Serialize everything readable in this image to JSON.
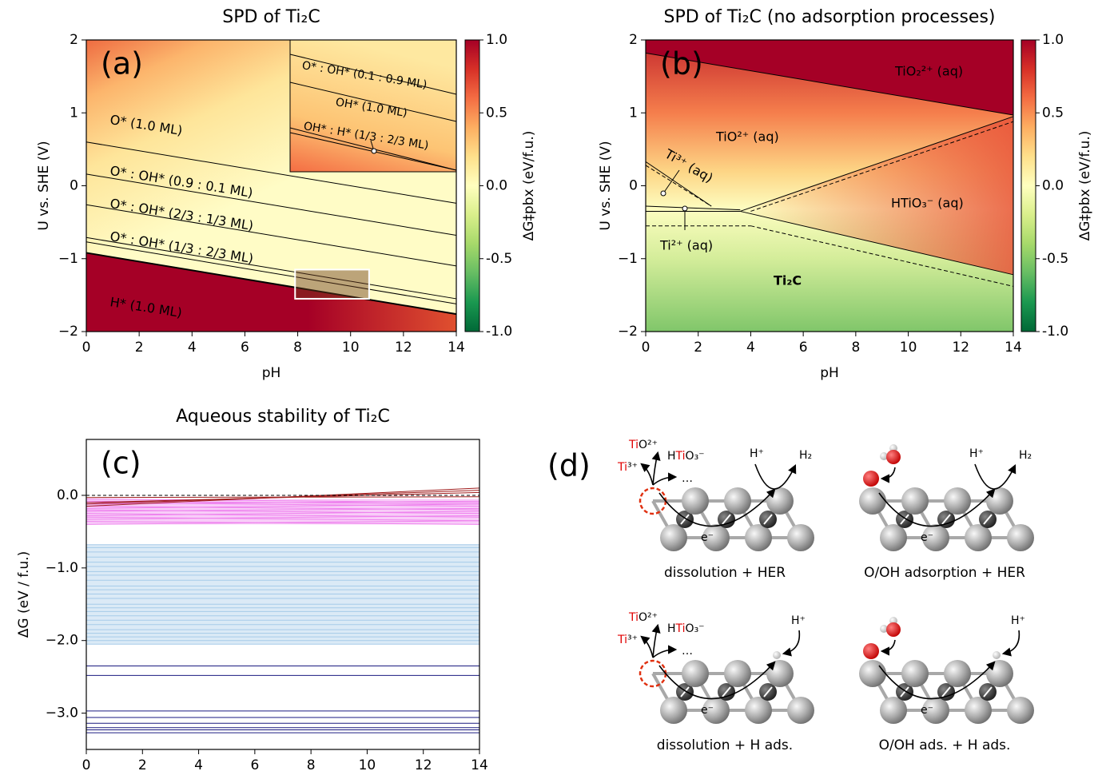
{
  "chart_data": [
    {
      "type": "pourbaix",
      "title": "SPD of Ti₂C",
      "panel_label": "(a)",
      "xlabel": "pH",
      "ylabel": "U vs. SHE (V)",
      "xlim": [
        0,
        14
      ],
      "ylim": [
        -2,
        2
      ],
      "xticks": [
        0,
        2,
        4,
        6,
        8,
        10,
        12,
        14
      ],
      "yticks": [
        {
          "value": -2,
          "label": "−2"
        },
        {
          "value": -1,
          "label": "−1"
        },
        0,
        1,
        2
      ],
      "x": [
        0,
        14
      ],
      "series": [
        {
          "color": "#000000",
          "values": [
            0.6,
            -0.24
          ]
        },
        {
          "color": "#000000",
          "values": [
            0.16,
            -0.68
          ]
        },
        {
          "color": "#000000",
          "values": [
            -0.26,
            -1.1
          ]
        },
        {
          "color": "#000000",
          "values": [
            -0.71,
            -1.55
          ]
        },
        {
          "color": "#000000",
          "values": [
            -0.77,
            -1.62
          ]
        },
        {
          "color": "#000000",
          "values": [
            -0.92,
            -1.76
          ],
          "linewidth": 2
        }
      ],
      "region_labels": [
        "O* (1.0 ML)",
        "O* : OH* (0.9 : 0.1 ML)",
        "O* : OH* (2/3 : 1/3 ML)",
        "O* : OH* (1/3 : 2/3 ML)",
        "H* (1.0 ML)"
      ],
      "inset_labels": [
        "O* : OH* (0.1 : 0.9 ML)",
        "OH* (1.0 ML)",
        "OH* : H* (1/3 : 2/3 ML)"
      ],
      "inset_region": {
        "x": [
          7.9,
          10.7
        ],
        "y": [
          -1.55,
          -1.15
        ]
      },
      "colorbar": {
        "label": "ΔG‡pbx (eV/f.u.)",
        "lim": [
          -1,
          1
        ],
        "ticks": [
          {
            "value": -1,
            "label": "-1.0"
          },
          {
            "value": -0.5,
            "label": "-0.5"
          },
          {
            "value": 0,
            "label": "0.0"
          },
          {
            "value": 0.5,
            "label": "0.5"
          },
          {
            "value": 1,
            "label": "1.0"
          }
        ]
      }
    },
    {
      "type": "pourbaix",
      "title": "SPD of Ti₂C (no adsorption processes)",
      "panel_label": "(b)",
      "xlabel": "pH",
      "ylabel": "U vs. SHE (V)",
      "xlim": [
        0,
        14
      ],
      "ylim": [
        -2,
        2
      ],
      "xticks": [
        0,
        2,
        4,
        6,
        8,
        10,
        12,
        14
      ],
      "yticks": [
        {
          "value": -2,
          "label": "−2"
        },
        {
          "value": -1,
          "label": "−1"
        },
        0,
        1,
        2
      ],
      "series": [
        {
          "color": "#000000",
          "x": [
            0,
            14
          ],
          "values": [
            1.82,
            0.97
          ]
        },
        {
          "color": "#000000",
          "x": [
            0,
            2.5
          ],
          "values": [
            0.33,
            -0.28
          ]
        },
        {
          "color": "#000000",
          "x": [
            0,
            3.6
          ],
          "values": [
            -0.28,
            -0.33
          ]
        },
        {
          "color": "#000000",
          "x": [
            0,
            3.6
          ],
          "values": [
            -0.35,
            -0.35
          ]
        },
        {
          "color": "#000000",
          "x": [
            3.6,
            14
          ],
          "values": [
            -0.35,
            0.95
          ]
        },
        {
          "color": "#000000",
          "x": [
            3.6,
            14
          ],
          "values": [
            -0.35,
            -1.22
          ]
        },
        {
          "color": "#000000",
          "x": [
            0,
            2.5
          ],
          "values": [
            0.28,
            -0.28
          ],
          "dashed": true
        },
        {
          "color": "#000000",
          "x": [
            0,
            4
          ],
          "values": [
            -0.55,
            -0.55
          ],
          "dashed": true
        },
        {
          "color": "#000000",
          "x": [
            4,
            14
          ],
          "values": [
            -0.55,
            -1.38
          ],
          "dashed": true
        },
        {
          "color": "#000000",
          "x": [
            4,
            14
          ],
          "values": [
            -0.35,
            0.88
          ],
          "dashed": true
        }
      ],
      "region_labels": [
        "TiO₂²⁺ (aq)",
        "TiO²⁺ (aq)",
        "Ti³⁺ (aq)",
        "HTiO₃⁻ (aq)",
        "Ti²⁺ (aq)",
        "Ti₂C"
      ],
      "colorbar": {
        "label": "ΔG‡pbx (eV/f.u.)",
        "lim": [
          -1,
          1
        ],
        "ticks": [
          {
            "value": -1,
            "label": "-1.0"
          },
          {
            "value": -0.5,
            "label": "-0.5"
          },
          {
            "value": 0,
            "label": "0.0"
          },
          {
            "value": 0.5,
            "label": "0.5"
          },
          {
            "value": 1,
            "label": "1.0"
          }
        ]
      }
    },
    {
      "type": "line",
      "title": "Aqueous stability of Ti₂C",
      "panel_label": "(c)",
      "ylabel": "ΔG (eV / f.u.)",
      "xlim": [
        0,
        14
      ],
      "ylim": [
        -3.5,
        0.77
      ],
      "xticks": [
        0,
        2,
        4,
        6,
        8,
        10,
        12,
        14
      ],
      "yticks": [
        {
          "value": -3,
          "label": "−3.0"
        },
        {
          "value": -2,
          "label": "−2.0"
        },
        {
          "value": -1,
          "label": "−1.0"
        },
        {
          "value": 0,
          "label": "0.0"
        }
      ],
      "reference_line": 0,
      "x": [
        0,
        14
      ],
      "series": [
        {
          "color": "#a6cbe9",
          "values": [
            -0.68,
            -0.68
          ]
        },
        {
          "color": "#a6cbe9",
          "values": [
            -0.72,
            -0.72
          ]
        },
        {
          "color": "#a6cbe9",
          "values": [
            -0.78,
            -0.78
          ]
        },
        {
          "color": "#a6cbe9",
          "values": [
            -0.85,
            -0.85
          ]
        },
        {
          "color": "#a6cbe9",
          "values": [
            -0.92,
            -0.92
          ]
        },
        {
          "color": "#a6cbe9",
          "values": [
            -0.98,
            -0.98
          ]
        },
        {
          "color": "#a6cbe9",
          "values": [
            -1.05,
            -1.05
          ]
        },
        {
          "color": "#a6cbe9",
          "values": [
            -1.1,
            -1.1
          ]
        },
        {
          "color": "#a6cbe9",
          "values": [
            -1.17,
            -1.17
          ]
        },
        {
          "color": "#a6cbe9",
          "values": [
            -1.25,
            -1.25
          ]
        },
        {
          "color": "#a6cbe9",
          "values": [
            -1.3,
            -1.3
          ]
        },
        {
          "color": "#a6cbe9",
          "values": [
            -1.36,
            -1.36
          ]
        },
        {
          "color": "#a6cbe9",
          "values": [
            -1.42,
            -1.42
          ]
        },
        {
          "color": "#a6cbe9",
          "values": [
            -1.5,
            -1.5
          ]
        },
        {
          "color": "#a6cbe9",
          "values": [
            -1.55,
            -1.55
          ]
        },
        {
          "color": "#a6cbe9",
          "values": [
            -1.6,
            -1.6
          ]
        },
        {
          "color": "#a6cbe9",
          "values": [
            -1.66,
            -1.66
          ]
        },
        {
          "color": "#a6cbe9",
          "values": [
            -1.72,
            -1.72
          ]
        },
        {
          "color": "#a6cbe9",
          "values": [
            -1.78,
            -1.78
          ]
        },
        {
          "color": "#a6cbe9",
          "values": [
            -1.85,
            -1.85
          ]
        },
        {
          "color": "#a6cbe9",
          "values": [
            -1.9,
            -1.9
          ]
        },
        {
          "color": "#a6cbe9",
          "values": [
            -1.95,
            -1.95
          ]
        },
        {
          "color": "#a6cbe9",
          "values": [
            -2.0,
            -2.0
          ]
        },
        {
          "color": "#a6cbe9",
          "values": [
            -2.05,
            -2.05
          ]
        },
        {
          "color": "#ee82ee",
          "values": [
            -0.05,
            -0.1
          ]
        },
        {
          "color": "#ee82ee",
          "values": [
            -0.08,
            -0.12
          ]
        },
        {
          "color": "#ee82ee",
          "values": [
            -0.1,
            -0.15
          ]
        },
        {
          "color": "#ee82ee",
          "values": [
            -0.12,
            -0.08
          ]
        },
        {
          "color": "#ee82ee",
          "values": [
            -0.15,
            -0.2
          ]
        },
        {
          "color": "#ee82ee",
          "values": [
            -0.18,
            -0.12
          ]
        },
        {
          "color": "#ee82ee",
          "values": [
            -0.2,
            -0.25
          ]
        },
        {
          "color": "#ee82ee",
          "values": [
            -0.22,
            -0.18
          ]
        },
        {
          "color": "#ee82ee",
          "values": [
            -0.25,
            -0.3
          ]
        },
        {
          "color": "#ee82ee",
          "values": [
            -0.28,
            -0.22
          ]
        },
        {
          "color": "#ee82ee",
          "values": [
            -0.3,
            -0.35
          ]
        },
        {
          "color": "#ee82ee",
          "values": [
            -0.33,
            -0.28
          ]
        },
        {
          "color": "#ee82ee",
          "values": [
            -0.36,
            -0.4
          ]
        },
        {
          "color": "#ee82ee",
          "values": [
            -0.4,
            -0.35
          ]
        },
        {
          "color": "#a01c1c",
          "values": [
            -0.15,
            0.1
          ]
        },
        {
          "color": "#a01c1c",
          "values": [
            -0.12,
            0.07
          ]
        },
        {
          "color": "#a01c1c",
          "values": [
            -0.1,
            0.04
          ]
        },
        {
          "color": "#a01c1c",
          "values": [
            -0.03,
            -0.02
          ]
        },
        {
          "color": "#1a1a80",
          "values": [
            -2.35,
            -2.35
          ]
        },
        {
          "color": "#1a1a80",
          "values": [
            -2.48,
            -2.48
          ]
        },
        {
          "color": "#1a1a80",
          "values": [
            -2.97,
            -2.97
          ]
        },
        {
          "color": "#1a1a80",
          "values": [
            -3.06,
            -3.06
          ]
        },
        {
          "color": "#1a1a80",
          "values": [
            -3.14,
            -3.14
          ]
        },
        {
          "color": "#1a1a80",
          "values": [
            -3.2,
            -3.2
          ]
        },
        {
          "color": "#1a1a80",
          "values": [
            -3.23,
            -3.23
          ]
        },
        {
          "color": "#1a1a80",
          "values": [
            -3.27,
            -3.27
          ]
        }
      ]
    }
  ],
  "diagram": {
    "label": "(d)",
    "panels": [
      {
        "caption": "dissolution + HER",
        "labels": {
          "tio": [
            "Ti",
            "O²⁺"
          ],
          "htio3": [
            "H",
            "Ti",
            "O₃⁻"
          ],
          "ti3": [
            "Ti",
            "³⁺"
          ],
          "more": "…",
          "hplus": "H⁺",
          "h2": "H₂",
          "electron": "e⁻"
        }
      },
      {
        "caption": "O/OH adsorption + HER",
        "labels": {
          "hplus": "H⁺",
          "h2": "H₂",
          "electron": "e⁻"
        }
      },
      {
        "caption": "dissolution + H ads.",
        "labels": {
          "tio": [
            "Ti",
            "O²⁺"
          ],
          "htio3": [
            "H",
            "Ti",
            "O₃⁻"
          ],
          "ti3": [
            "Ti",
            "³⁺"
          ],
          "more": "…",
          "hplus": "H⁺",
          "electron": "e⁻"
        }
      },
      {
        "caption": "O/OH ads. + H ads.",
        "labels": {
          "hplus": "H⁺",
          "electron": "e⁻"
        }
      }
    ]
  }
}
